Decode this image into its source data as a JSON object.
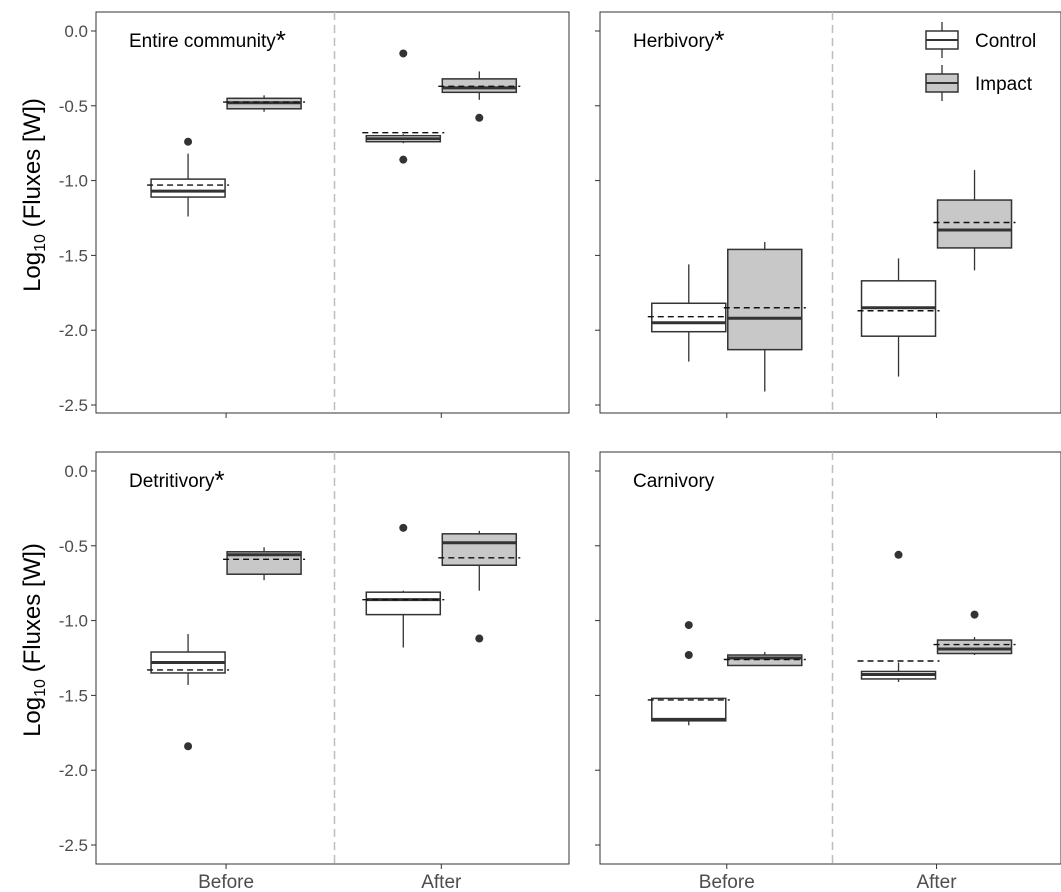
{
  "chart_data": {
    "type": "boxplot",
    "ylabel_main": "Log",
    "ylabel_sub": "10",
    "ylabel_rest": " (Fluxes [W])",
    "ylim": [
      -2.65,
      0.1
    ],
    "yticks": [
      0.0,
      -0.5,
      -1.0,
      -1.5,
      -2.0,
      -2.5
    ],
    "ytick_labels": [
      "0.0",
      "-0.5",
      "-1.0",
      "-1.5",
      "-2.0",
      "-2.5"
    ],
    "categories": [
      "Before",
      "After"
    ],
    "legend": {
      "position": "top-right",
      "items": [
        {
          "label": "Control",
          "color": "#ffffff"
        },
        {
          "label": "Impact",
          "color": "#c8c8c8"
        }
      ]
    },
    "panels": [
      {
        "title": "Entire community",
        "significant": true,
        "groups": [
          {
            "period": "Before",
            "treatment": "Control",
            "min": -1.24,
            "q1": -1.11,
            "median": -1.07,
            "q3": -0.99,
            "max": -0.82,
            "mean": -1.03,
            "outliers": [
              -0.74
            ]
          },
          {
            "period": "Before",
            "treatment": "Impact",
            "min": -0.54,
            "q1": -0.52,
            "median": -0.48,
            "q3": -0.45,
            "max": -0.43,
            "mean": -0.475,
            "outliers": []
          },
          {
            "period": "After",
            "treatment": "Control",
            "min": -0.75,
            "q1": -0.74,
            "median": -0.72,
            "q3": -0.7,
            "max": -0.69,
            "mean": -0.68,
            "outliers": [
              -0.15,
              -0.86
            ]
          },
          {
            "period": "After",
            "treatment": "Impact",
            "min": -0.46,
            "q1": -0.41,
            "median": -0.38,
            "q3": -0.32,
            "max": -0.27,
            "mean": -0.37,
            "outliers": [
              -0.58
            ]
          }
        ]
      },
      {
        "title": "Herbivory",
        "significant": true,
        "groups": [
          {
            "period": "Before",
            "treatment": "Control",
            "min": -2.21,
            "q1": -2.01,
            "median": -1.95,
            "q3": -1.82,
            "max": -1.56,
            "mean": -1.91,
            "outliers": []
          },
          {
            "period": "Before",
            "treatment": "Impact",
            "min": -2.41,
            "q1": -2.13,
            "median": -1.92,
            "q3": -1.46,
            "max": -1.41,
            "mean": -1.85,
            "outliers": []
          },
          {
            "period": "After",
            "treatment": "Control",
            "min": -2.31,
            "q1": -2.04,
            "median": -1.85,
            "q3": -1.67,
            "max": -1.52,
            "mean": -1.87,
            "outliers": []
          },
          {
            "period": "After",
            "treatment": "Impact",
            "min": -1.6,
            "q1": -1.45,
            "median": -1.33,
            "q3": -1.13,
            "max": -0.93,
            "mean": -1.28,
            "outliers": []
          }
        ]
      },
      {
        "title": "Detritivory",
        "significant": true,
        "groups": [
          {
            "period": "Before",
            "treatment": "Control",
            "min": -1.43,
            "q1": -1.35,
            "median": -1.28,
            "q3": -1.21,
            "max": -1.09,
            "mean": -1.33,
            "outliers": [
              -1.84
            ]
          },
          {
            "period": "Before",
            "treatment": "Impact",
            "min": -0.73,
            "q1": -0.69,
            "median": -0.56,
            "q3": -0.54,
            "max": -0.51,
            "mean": -0.59,
            "outliers": []
          },
          {
            "period": "After",
            "treatment": "Control",
            "min": -1.18,
            "q1": -0.96,
            "median": -0.86,
            "q3": -0.81,
            "max": -0.8,
            "mean": -0.86,
            "outliers": [
              -0.38
            ]
          },
          {
            "period": "After",
            "treatment": "Impact",
            "min": -0.8,
            "q1": -0.63,
            "median": -0.48,
            "q3": -0.42,
            "max": -0.4,
            "mean": -0.58,
            "outliers": [
              -1.12
            ]
          }
        ]
      },
      {
        "title": "Carnivory",
        "significant": false,
        "groups": [
          {
            "period": "Before",
            "treatment": "Control",
            "min": -1.7,
            "q1": -1.67,
            "median": -1.66,
            "q3": -1.52,
            "max": -1.52,
            "mean": -1.53,
            "outliers": [
              -1.03,
              -1.23
            ]
          },
          {
            "period": "Before",
            "treatment": "Impact",
            "min": -1.3,
            "q1": -1.3,
            "median": -1.25,
            "q3": -1.23,
            "max": -1.21,
            "mean": -1.26,
            "outliers": []
          },
          {
            "period": "After",
            "treatment": "Control",
            "min": -1.41,
            "q1": -1.39,
            "median": -1.36,
            "q3": -1.34,
            "max": -1.28,
            "mean": -1.27,
            "outliers": [
              -0.56
            ]
          },
          {
            "period": "After",
            "treatment": "Impact",
            "min": -1.23,
            "q1": -1.22,
            "median": -1.19,
            "q3": -1.13,
            "max": -1.11,
            "mean": -1.16,
            "outliers": [
              -0.96
            ]
          }
        ]
      }
    ]
  }
}
